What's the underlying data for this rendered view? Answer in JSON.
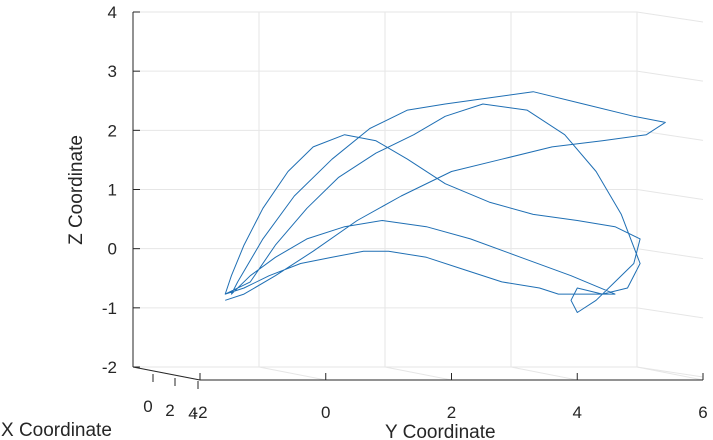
{
  "chart_data": {
    "type": "line",
    "projection": "3d",
    "xlabel": "X Coordinate",
    "ylabel": "Y Coordinate",
    "zlabel": "Z Coordinate",
    "xlim": [
      -2,
      4
    ],
    "ylim": [
      -2,
      6
    ],
    "zlim": [
      -2,
      4
    ],
    "x_ticks": [
      "0",
      "2",
      "4"
    ],
    "y_ticks": [
      "-2",
      "0",
      "2",
      "4",
      "6"
    ],
    "z_ticks": [
      "-2",
      "-1",
      "0",
      "1",
      "2",
      "3",
      "4"
    ],
    "grid": true,
    "series": [
      {
        "color": "#1f6fb4",
        "y": [
          -1.6,
          -1.2,
          -0.8,
          -0.3,
          0.2,
          0.8,
          1.4,
          1.9,
          2.5,
          3.2,
          3.8,
          4.3,
          4.7,
          5.0,
          4.8,
          4.4,
          4.0,
          3.9,
          4.0,
          4.3,
          4.6,
          4.9,
          5.0,
          4.6,
          4.0,
          3.3,
          2.6,
          1.9,
          1.3,
          0.8,
          0.3,
          -0.2,
          -0.6,
          -1.0,
          -1.3,
          -1.5,
          -1.6,
          -1.3,
          -0.9,
          -0.4,
          0.1,
          0.6,
          1.0,
          1.6,
          2.2,
          2.8,
          3.4,
          3.7,
          4.2,
          4.6,
          3.9,
          3.1,
          2.3,
          1.6,
          0.9,
          0.3,
          -0.3,
          -0.8,
          -1.2,
          -1.5,
          -1.4,
          -1.0,
          -0.5,
          0.1,
          0.7,
          1.3,
          1.9,
          2.6,
          3.3,
          4.1,
          4.9,
          5.4,
          5.1,
          4.4,
          3.6,
          2.8,
          2.0,
          1.2,
          0.5,
          -0.2,
          -0.8,
          -1.3,
          -1.6
        ],
        "z": [
          -0.6,
          -0.4,
          0.2,
          0.8,
          1.3,
          1.7,
          2.0,
          2.3,
          2.5,
          2.4,
          2.0,
          1.4,
          0.7,
          -0.1,
          -0.5,
          -0.6,
          -0.5,
          -0.7,
          -0.9,
          -0.7,
          -0.4,
          -0.1,
          0.3,
          0.5,
          0.6,
          0.7,
          0.9,
          1.2,
          1.6,
          1.9,
          2.0,
          1.8,
          1.4,
          0.8,
          0.2,
          -0.3,
          -0.6,
          -0.5,
          -0.3,
          -0.1,
          0.0,
          0.1,
          0.1,
          0.0,
          -0.2,
          -0.4,
          -0.5,
          -0.6,
          -0.6,
          -0.6,
          -0.3,
          0.0,
          0.3,
          0.5,
          0.6,
          0.5,
          0.3,
          0.0,
          -0.3,
          -0.6,
          -0.4,
          0.3,
          1.0,
          1.6,
          2.1,
          2.4,
          2.5,
          2.6,
          2.7,
          2.5,
          2.3,
          2.2,
          2.0,
          1.9,
          1.8,
          1.6,
          1.4,
          1.0,
          0.6,
          0.1,
          -0.3,
          -0.6,
          -0.7
        ]
      }
    ]
  }
}
